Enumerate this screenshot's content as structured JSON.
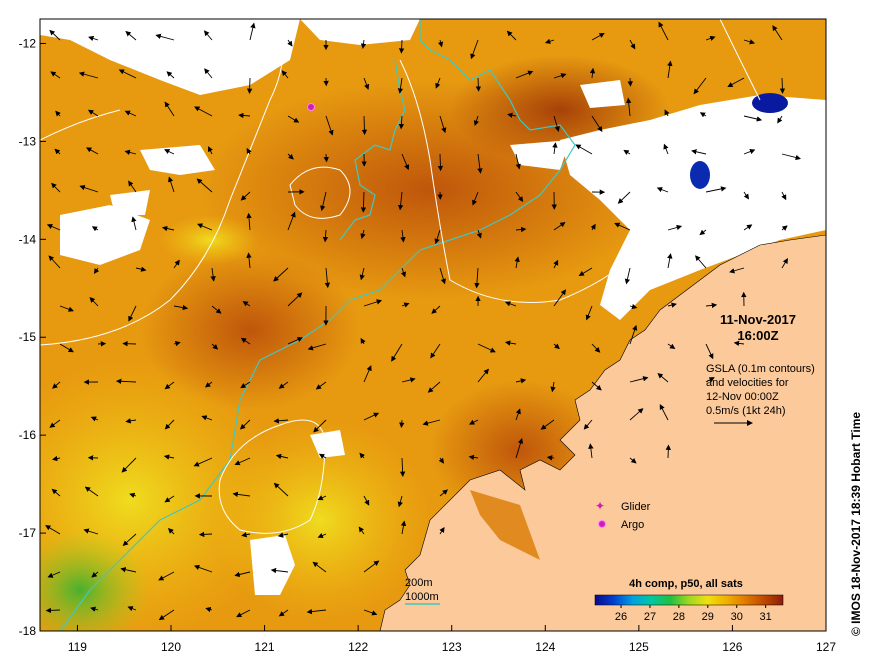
{
  "map": {
    "lon_range": [
      118.6,
      127.0
    ],
    "lat_range": [
      -18.0,
      -11.75
    ],
    "x_ticks": [
      "119",
      "120",
      "121",
      "122",
      "123",
      "124",
      "125",
      "126",
      "127"
    ],
    "y_ticks": [
      "-12",
      "-13",
      "-14",
      "-15",
      "-16",
      "-17",
      "-18"
    ],
    "datetime": {
      "date": "11-Nov-2017",
      "time": "16:00Z"
    },
    "velocity_note": {
      "line1": "GSLA (0.1m contours)",
      "line2": "and velocities for",
      "line3": "12-Nov 00:00Z",
      "line4": "0.5m/s (1kt 24h)"
    },
    "legend": {
      "glider": "Glider",
      "argo": "Argo",
      "glider_color": "#d01eb4",
      "argo_color": "#d01eb4"
    },
    "isobaths": {
      "label_200": "200m",
      "label_1000": "1000m",
      "color_1000": "#40c8c0"
    },
    "colorbar": {
      "title": "4h comp, p50, all sats",
      "ticks": [
        "26",
        "27",
        "28",
        "29",
        "30",
        "31"
      ],
      "range": [
        25.1,
        31.6
      ],
      "colors": [
        "#0a0a8c",
        "#0040d0",
        "#00a0e0",
        "#00c8a0",
        "#20c040",
        "#a0d820",
        "#f0e010",
        "#f0b000",
        "#e07a00",
        "#c04800",
        "#8c1c0a"
      ]
    },
    "credit": "© IMOS 18-Nov-2017 18:39 Hobart Time"
  }
}
